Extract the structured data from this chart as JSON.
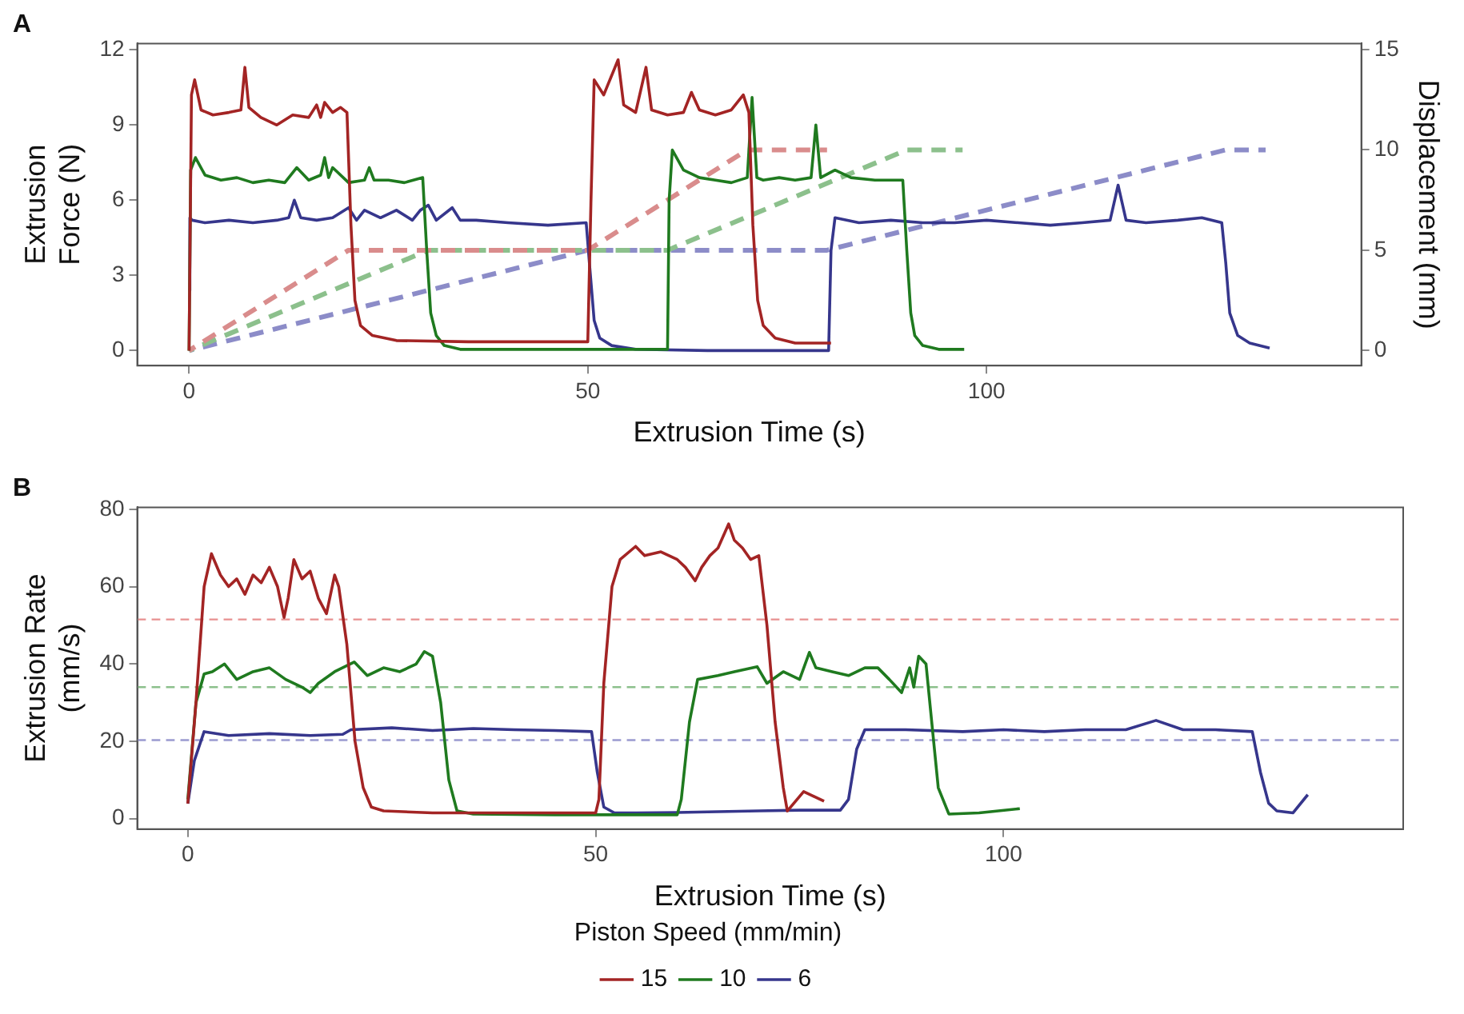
{
  "chart_data": [
    {
      "type": "line",
      "title": "A",
      "xlabel": "Extrusion Time (s)",
      "ylabel": "Extrusion\nForce (N)",
      "y2label": "Displacement (mm)",
      "xlim": [
        -6.5,
        147
      ],
      "xticks": [
        0,
        50,
        100
      ],
      "ylim": [
        -0.6,
        12.25
      ],
      "yticks": [
        0,
        3,
        6,
        9,
        12
      ],
      "y2lim": [
        -0.75,
        15.3
      ],
      "y2ticks": [
        0,
        5,
        10,
        15
      ],
      "grid": false,
      "legend": false,
      "line_style": "solid",
      "series": [
        {
          "color": "#a32424",
          "x": [
            0,
            0.3,
            0.7,
            1.5,
            3,
            5,
            6.5,
            7,
            7.5,
            9,
            11,
            13,
            15,
            16,
            16.5,
            17,
            18,
            19,
            19.8,
            20.3,
            20.8,
            21.5,
            23,
            26,
            35,
            50,
            50.4,
            50.8,
            52,
            53.8,
            54.5,
            56,
            57.3,
            58,
            60,
            62,
            63,
            64,
            66,
            68,
            69.5,
            70.2,
            70.7,
            71.3,
            72,
            73.5,
            76,
            80.5
          ],
          "values": [
            0,
            10.2,
            10.8,
            9.6,
            9.4,
            9.5,
            9.6,
            11.3,
            9.7,
            9.3,
            9.0,
            9.4,
            9.3,
            9.8,
            9.3,
            9.9,
            9.5,
            9.7,
            9.5,
            5,
            2,
            1,
            0.6,
            0.4,
            0.35,
            0.35,
            6,
            10.8,
            10.2,
            11.6,
            9.8,
            9.5,
            11.3,
            9.6,
            9.4,
            9.5,
            10.3,
            9.6,
            9.4,
            9.6,
            10.2,
            9.5,
            5,
            2,
            1,
            0.5,
            0.3,
            0.3
          ]
        },
        {
          "color": "#1f7a1f",
          "x": [
            0,
            0.2,
            0.8,
            2,
            4,
            6,
            8,
            10,
            12,
            13.5,
            15,
            16.5,
            17,
            17.5,
            18,
            20,
            22,
            22.6,
            23.2,
            25,
            27,
            29.3,
            29.8,
            30.3,
            31,
            32,
            34,
            40,
            50,
            60,
            60.2,
            60.6,
            62,
            64,
            66,
            68,
            70,
            70.6,
            71.2,
            72,
            74,
            76,
            78,
            78.6,
            79.2,
            81,
            83,
            86,
            89.5,
            90,
            90.5,
            91,
            92,
            94,
            97.2
          ],
          "values": [
            0,
            7.2,
            7.7,
            7.0,
            6.8,
            6.9,
            6.7,
            6.8,
            6.7,
            7.3,
            6.8,
            7.0,
            7.7,
            6.9,
            7.3,
            6.7,
            6.8,
            7.3,
            6.8,
            6.8,
            6.7,
            6.9,
            4,
            1.5,
            0.6,
            0.2,
            0.05,
            0.05,
            0.05,
            0.05,
            6,
            8.0,
            7.2,
            6.9,
            6.8,
            6.7,
            6.9,
            10.1,
            6.9,
            6.8,
            6.9,
            6.8,
            6.9,
            9.0,
            6.9,
            7.2,
            6.9,
            6.8,
            6.8,
            4,
            1.5,
            0.6,
            0.2,
            0.05,
            0.05
          ]
        },
        {
          "color": "#36368c",
          "x": [
            0,
            0.1,
            0.4,
            2,
            5,
            8,
            11,
            12.5,
            13.2,
            14,
            16,
            18,
            20,
            21,
            22,
            24,
            26,
            28,
            29,
            30,
            31,
            33,
            34,
            36,
            40,
            45,
            49.8,
            50.2,
            50.8,
            51.5,
            53,
            56,
            65,
            75,
            80.2,
            80.5,
            81,
            84,
            88,
            92,
            96,
            100,
            104,
            108,
            112,
            115.5,
            116.5,
            117.5,
            120,
            124,
            127,
            129.5,
            130,
            130.5,
            131.5,
            133,
            135.5
          ],
          "values": [
            2.4,
            5.3,
            5.2,
            5.1,
            5.2,
            5.1,
            5.2,
            5.3,
            6.0,
            5.3,
            5.2,
            5.3,
            5.7,
            5.2,
            5.6,
            5.3,
            5.6,
            5.2,
            5.6,
            5.8,
            5.2,
            5.7,
            5.2,
            5.2,
            5.1,
            5.0,
            5.1,
            3.5,
            1.2,
            0.5,
            0.2,
            0.05,
            0,
            0,
            0,
            4,
            5.3,
            5.1,
            5.2,
            5.1,
            5.1,
            5.2,
            5.1,
            5.0,
            5.1,
            5.2,
            6.6,
            5.2,
            5.1,
            5.2,
            5.3,
            5.1,
            3.5,
            1.5,
            0.6,
            0.3,
            0.1
          ]
        },
        {
          "color": "#d98c8c",
          "axis": "y2",
          "line_style": "dashed",
          "x": [
            0,
            20,
            50,
            70,
            80
          ],
          "values": [
            0,
            5,
            5,
            10,
            10
          ]
        },
        {
          "color": "#8cc08c",
          "axis": "y2",
          "line_style": "dashed",
          "x": [
            0,
            30,
            60,
            90,
            97
          ],
          "values": [
            0,
            5,
            5,
            10,
            10
          ]
        },
        {
          "color": "#8c8cc8",
          "axis": "y2",
          "line_style": "dashed",
          "x": [
            0,
            50,
            80,
            130,
            135
          ],
          "values": [
            0,
            5,
            5,
            10,
            10
          ]
        }
      ]
    },
    {
      "type": "line",
      "title": "B",
      "xlabel": "Extrusion Time (s)",
      "ylabel": "Extrusion Rate\n(mm/s)",
      "legend_title": "Piston Speed (mm/min)",
      "xlim": [
        -6.2,
        149
      ],
      "xticks": [
        0,
        50,
        100
      ],
      "ylim": [
        -2.7,
        80.5
      ],
      "yticks": [
        0,
        20,
        40,
        60,
        80
      ],
      "grid": false,
      "legend": "bottom",
      "line_style": "solid",
      "ref_lines": [
        {
          "axis": "y",
          "value": 51.5,
          "color": "#e89090",
          "line_style": "dashed"
        },
        {
          "axis": "y",
          "value": 34,
          "color": "#8cc08c",
          "line_style": "dashed"
        },
        {
          "axis": "y",
          "value": 20.3,
          "color": "#9a9ad0",
          "line_style": "dashed"
        }
      ],
      "series": [
        {
          "name": "15",
          "color": "#a32424",
          "x": [
            0,
            1,
            2,
            2.9,
            4,
            5,
            6,
            7,
            8,
            9,
            10,
            11,
            11.8,
            12.3,
            13,
            14,
            15,
            16,
            17,
            18,
            18.5,
            19.5,
            20.5,
            21.5,
            22.5,
            24,
            30,
            40,
            50,
            50.4,
            51,
            52,
            53,
            54.9,
            56,
            58,
            60,
            61,
            62.2,
            63,
            64,
            65,
            66.3,
            67,
            68,
            69,
            70,
            71,
            72,
            73,
            73.5,
            75.5,
            78
          ],
          "values": [
            3.9,
            30,
            60,
            68.5,
            63,
            60,
            62,
            58,
            63,
            61,
            65,
            60,
            52,
            57,
            67,
            62,
            64,
            57,
            53,
            63,
            60,
            45,
            20,
            8,
            3,
            2,
            1.5,
            1.5,
            1.5,
            5,
            35,
            60,
            67,
            70.4,
            68,
            69,
            67,
            65,
            61.5,
            65,
            68,
            70,
            76.2,
            72,
            70,
            67,
            68,
            50,
            25,
            8,
            2,
            7,
            4.5
          ]
        },
        {
          "name": "10",
          "color": "#1f7a1f",
          "x": [
            0,
            1,
            2,
            3,
            4.5,
            6,
            8,
            10,
            12,
            14,
            15,
            16,
            18,
            20.4,
            22,
            24,
            26,
            28,
            29,
            30,
            31,
            32,
            33,
            35,
            45,
            55,
            60,
            60.5,
            61.5,
            62.5,
            65,
            67,
            69.8,
            71,
            73,
            75,
            76.2,
            77,
            79,
            81,
            83,
            84.6,
            86,
            87.5,
            88.5,
            89,
            89.6,
            90.5,
            91.2,
            92,
            93.3,
            97,
            102
          ],
          "values": [
            5,
            30,
            37.4,
            38,
            40,
            36,
            38,
            39,
            36,
            34,
            32.6,
            35,
            38,
            40.5,
            37,
            39,
            38,
            40,
            43.2,
            42,
            30,
            10,
            2,
            1.2,
            1,
            1,
            1,
            5,
            25,
            36,
            37,
            38,
            39.3,
            35,
            38,
            36,
            43,
            39,
            38,
            37,
            39,
            39,
            36,
            32.6,
            39,
            34,
            42,
            40,
            25,
            8,
            1.2,
            1.5,
            2.6
          ]
        },
        {
          "name": "6",
          "color": "#36368c",
          "x": [
            0,
            0.8,
            2,
            5,
            10,
            15,
            19,
            20,
            25,
            30,
            35,
            40,
            45,
            49.5,
            50.2,
            51,
            52.3,
            55,
            60,
            65,
            70,
            75,
            80,
            81,
            82,
            83,
            88,
            95,
            100,
            105,
            110,
            115,
            118.7,
            122,
            126,
            130.5,
            131.5,
            132.5,
            133.5,
            135.5,
            137.3
          ],
          "values": [
            3.9,
            15,
            22.5,
            21.5,
            22,
            21.5,
            21.8,
            23,
            23.5,
            22.8,
            23.3,
            23,
            22.8,
            22.5,
            12,
            3,
            1.5,
            1.5,
            1.6,
            1.8,
            2,
            2.2,
            2.2,
            5,
            18,
            23,
            23,
            22.5,
            23,
            22.5,
            23,
            23,
            25.4,
            23,
            23,
            22.5,
            12,
            4,
            2,
            1.5,
            6.2
          ]
        }
      ]
    }
  ]
}
